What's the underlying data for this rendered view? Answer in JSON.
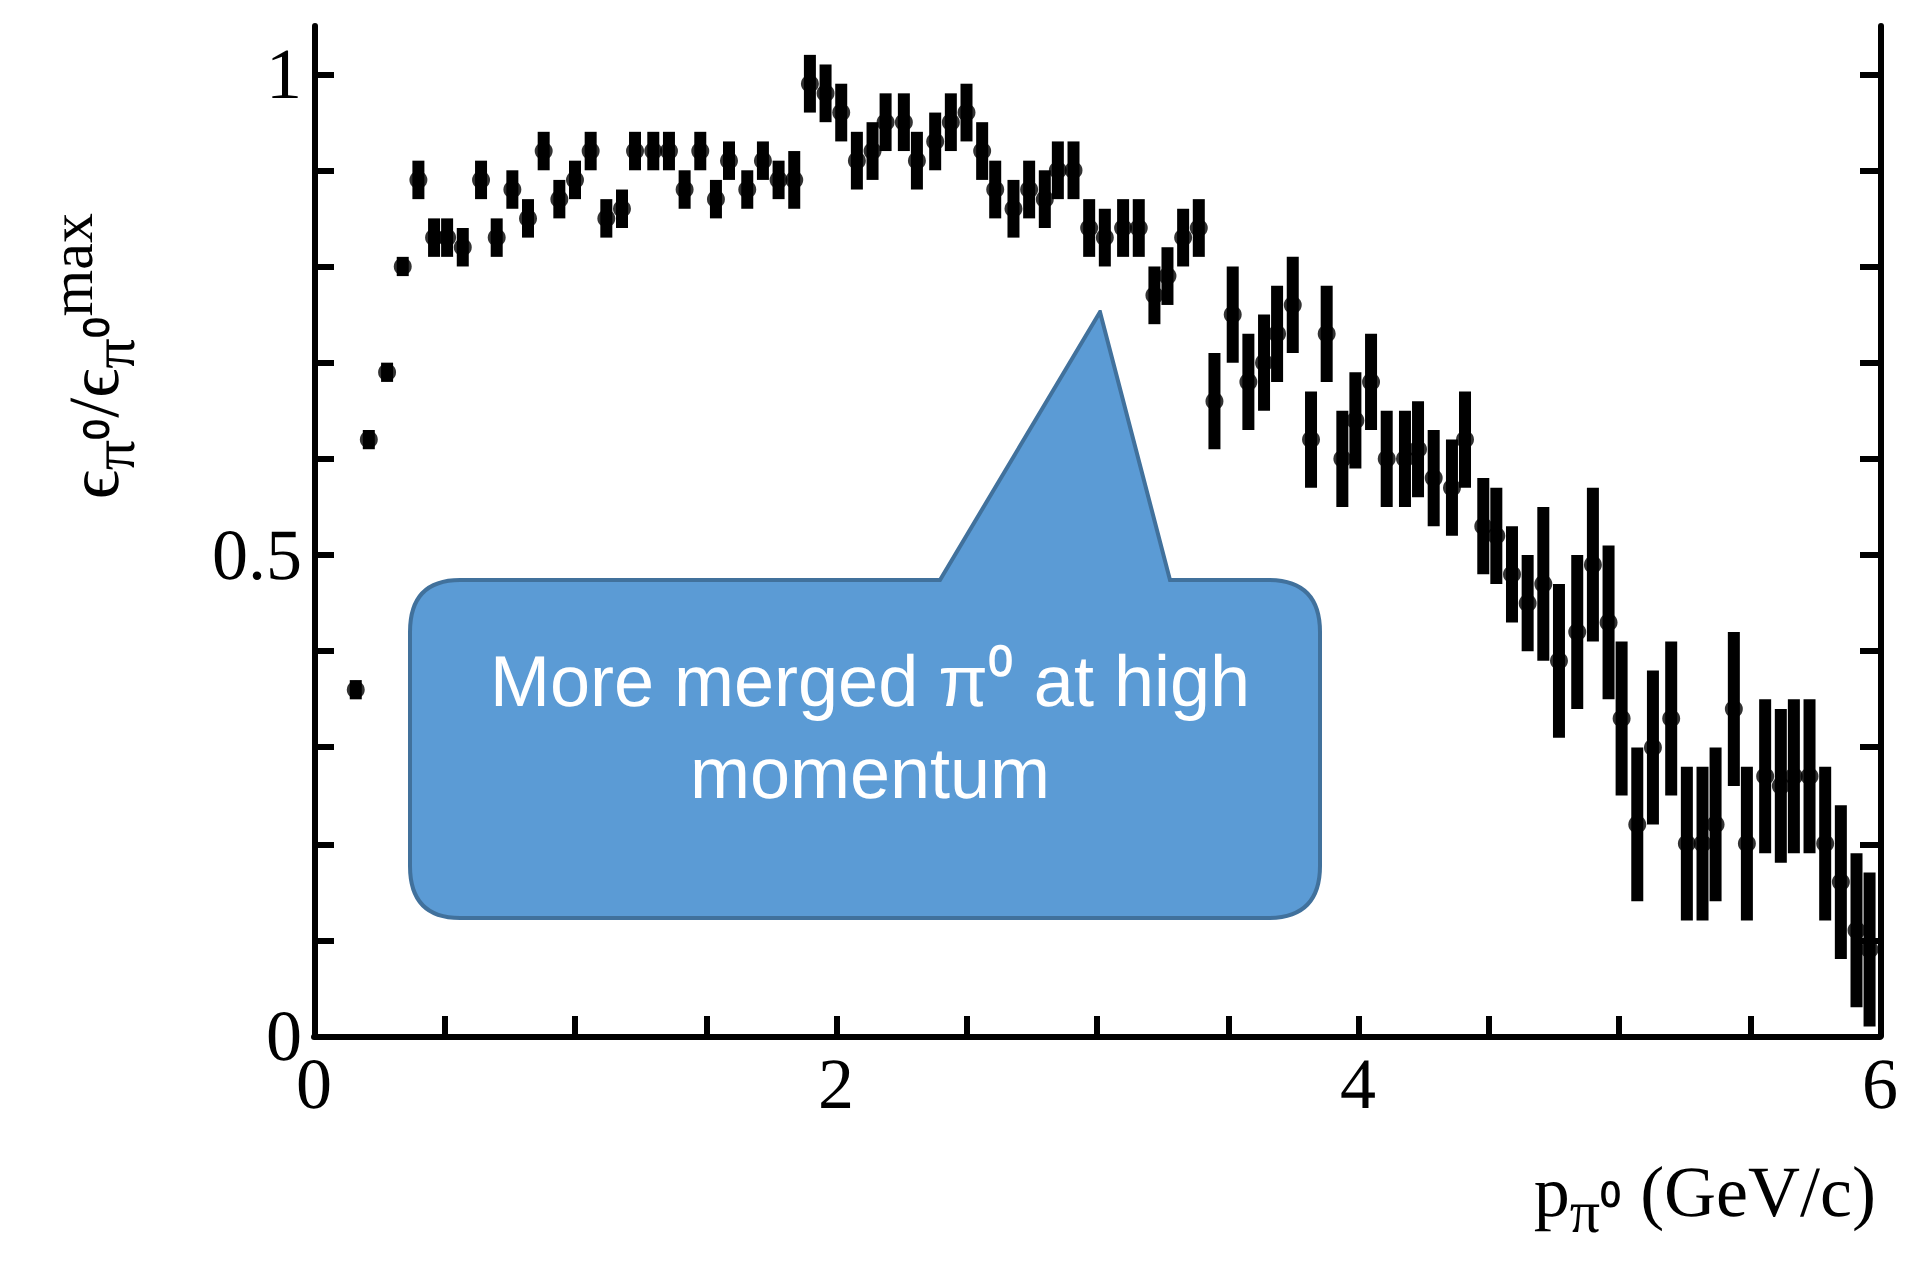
{
  "chart_data": {
    "type": "scatter",
    "xlabel": "p$_{π⁰}$ (GeV/c)",
    "ylabel": "ϵ$_{π⁰}$/ϵ$_{π⁰}$$^{max}$",
    "annotations": [
      "More merged π⁰ at high momentum"
    ],
    "xlim": [
      0,
      6
    ],
    "ylim": [
      0,
      1.05
    ],
    "xticks": [
      0,
      {
        "value": 0.5,
        "label": null
      },
      {
        "value": 1,
        "label": null
      },
      {
        "value": 1.5,
        "label": null
      },
      2,
      {
        "value": 2.5,
        "label": null
      },
      {
        "value": 3,
        "label": null
      },
      {
        "value": 3.5,
        "label": null
      },
      4,
      {
        "value": 4.5,
        "label": null
      },
      {
        "value": 5,
        "label": null
      },
      {
        "value": 5.5,
        "label": null
      },
      6
    ],
    "yticks": [
      0,
      {
        "value": 0.1,
        "label": null
      },
      {
        "value": 0.2,
        "label": null
      },
      {
        "value": 0.3,
        "label": null
      },
      {
        "value": 0.4,
        "label": null
      },
      0.5,
      {
        "value": 0.6,
        "label": null
      },
      {
        "value": 0.7,
        "label": null
      },
      {
        "value": 0.8,
        "label": null
      },
      {
        "value": 0.9,
        "label": null
      },
      1
    ],
    "grid": false,
    "marker": "circle",
    "series": [
      {
        "color": "#000000",
        "x": [
          0.16,
          0.21,
          0.28,
          0.34,
          0.4,
          0.46,
          0.51,
          0.57,
          0.64,
          0.7,
          0.76,
          0.82,
          0.88,
          0.94,
          1.0,
          1.06,
          1.12,
          1.18,
          1.23,
          1.3,
          1.36,
          1.42,
          1.48,
          1.54,
          1.59,
          1.66,
          1.72,
          1.78,
          1.84,
          1.9,
          1.96,
          2.02,
          2.08,
          2.14,
          2.19,
          2.26,
          2.31,
          2.38,
          2.44,
          2.5,
          2.56,
          2.61,
          2.68,
          2.74,
          2.8,
          2.85,
          2.91,
          2.97,
          3.03,
          3.1,
          3.16,
          3.22,
          3.27,
          3.33,
          3.39,
          3.45,
          3.52,
          3.58,
          3.64,
          3.69,
          3.75,
          3.82,
          3.88,
          3.94,
          3.99,
          4.05,
          4.11,
          4.18,
          4.23,
          4.29,
          4.36,
          4.41,
          4.48,
          4.53,
          4.59,
          4.65,
          4.71,
          4.77,
          4.84,
          4.9,
          4.96,
          5.01,
          5.07,
          5.13,
          5.2,
          5.26,
          5.32,
          5.37,
          5.44,
          5.49,
          5.56,
          5.62,
          5.67,
          5.73,
          5.79,
          5.85,
          5.91,
          5.96
        ],
        "values": [
          0.36,
          0.62,
          0.69,
          0.8,
          0.89,
          0.83,
          0.83,
          0.82,
          0.89,
          0.83,
          0.88,
          0.85,
          0.92,
          0.87,
          0.89,
          0.92,
          0.85,
          0.86,
          0.92,
          0.92,
          0.92,
          0.88,
          0.92,
          0.87,
          0.91,
          0.88,
          0.91,
          0.89,
          0.89,
          0.99,
          0.98,
          0.96,
          0.91,
          0.92,
          0.95,
          0.95,
          0.91,
          0.93,
          0.95,
          0.96,
          0.92,
          0.88,
          0.86,
          0.88,
          0.87,
          0.9,
          0.9,
          0.84,
          0.83,
          0.84,
          0.84,
          0.77,
          0.79,
          0.83,
          0.84,
          0.66,
          0.75,
          0.68,
          0.7,
          0.73,
          0.76,
          0.62,
          0.73,
          0.6,
          0.64,
          0.68,
          0.6,
          0.6,
          0.61,
          0.58,
          0.57,
          0.62,
          0.53,
          0.52,
          0.48,
          0.45,
          0.47,
          0.39,
          0.42,
          0.49,
          0.43,
          0.33,
          0.22,
          0.3,
          0.33,
          0.2,
          0.2,
          0.22,
          0.34,
          0.2,
          0.27,
          0.26,
          0.27,
          0.27,
          0.2,
          0.16,
          0.11,
          0.09
        ],
        "errors": [
          0.01,
          0.01,
          0.01,
          0.01,
          0.02,
          0.02,
          0.02,
          0.02,
          0.02,
          0.02,
          0.02,
          0.02,
          0.02,
          0.02,
          0.02,
          0.02,
          0.02,
          0.02,
          0.02,
          0.02,
          0.02,
          0.02,
          0.02,
          0.02,
          0.02,
          0.02,
          0.02,
          0.02,
          0.03,
          0.03,
          0.03,
          0.03,
          0.03,
          0.03,
          0.03,
          0.03,
          0.03,
          0.03,
          0.03,
          0.03,
          0.03,
          0.03,
          0.03,
          0.03,
          0.03,
          0.03,
          0.03,
          0.03,
          0.03,
          0.03,
          0.03,
          0.03,
          0.03,
          0.03,
          0.03,
          0.05,
          0.05,
          0.05,
          0.05,
          0.05,
          0.05,
          0.05,
          0.05,
          0.05,
          0.05,
          0.05,
          0.05,
          0.05,
          0.05,
          0.05,
          0.05,
          0.05,
          0.05,
          0.05,
          0.05,
          0.05,
          0.08,
          0.08,
          0.08,
          0.08,
          0.08,
          0.08,
          0.08,
          0.08,
          0.08,
          0.08,
          0.08,
          0.08,
          0.08,
          0.08,
          0.08,
          0.08,
          0.08,
          0.08,
          0.08,
          0.08,
          0.08,
          0.08
        ]
      }
    ]
  }
}
